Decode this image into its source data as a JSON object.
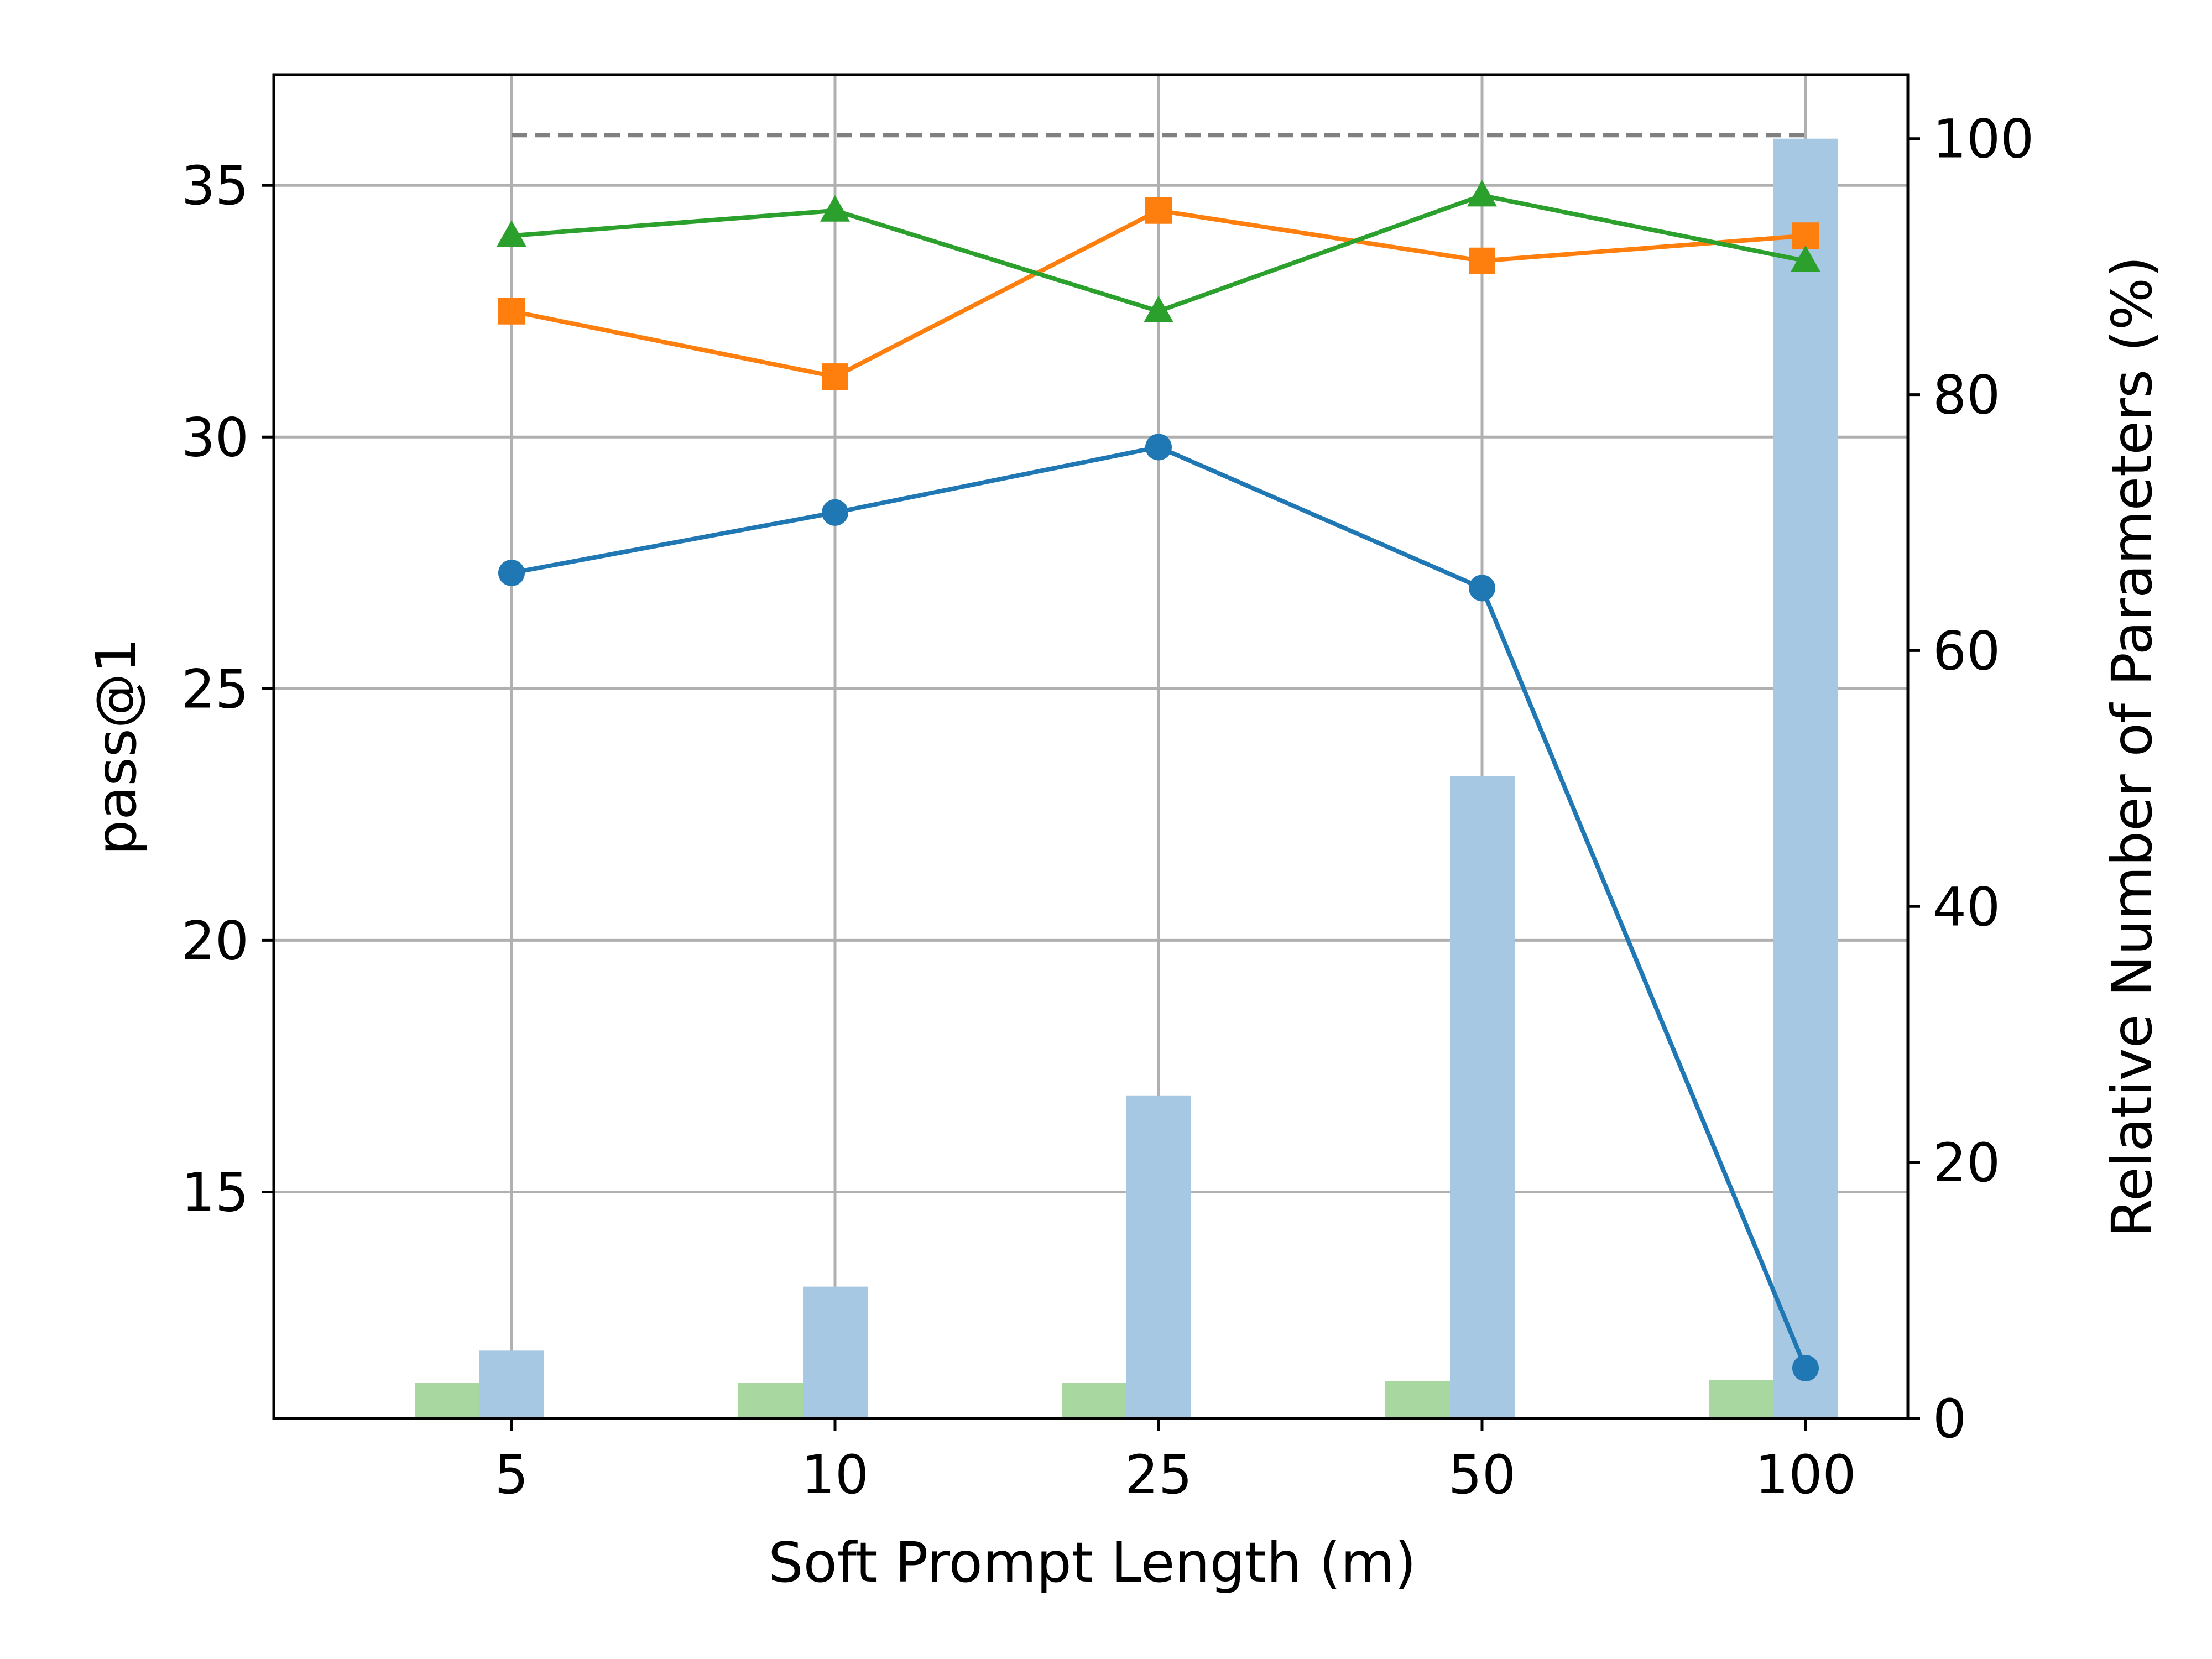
{
  "chart_data": {
    "type": "line",
    "title": "",
    "xlabel": "Soft Prompt Length (m)",
    "ylabel": "pass@1",
    "y2label": "Relative Number of Parameters (%)",
    "categories": [
      "5",
      "10",
      "25",
      "50",
      "100"
    ],
    "ylim": [
      10.5,
      37.2
    ],
    "y2lim": [
      0,
      105
    ],
    "yticks": [
      15,
      20,
      25,
      30,
      35
    ],
    "y2ticks": [
      0,
      20,
      40,
      60,
      80,
      100
    ],
    "grid": true,
    "legend": "none",
    "reference_line": {
      "value": 36.0,
      "axis": "left",
      "color": "#808080",
      "style": "dashed"
    },
    "series": [
      {
        "color": "#1f77b4",
        "marker": "circle",
        "values": [
          27.3,
          28.5,
          29.8,
          27.0,
          11.5
        ]
      },
      {
        "color": "#ff7f0e",
        "marker": "square",
        "values": [
          32.5,
          31.2,
          34.5,
          33.5,
          34.0
        ]
      },
      {
        "color": "#2ca02c",
        "marker": "triangle",
        "values": [
          34.0,
          34.5,
          32.5,
          34.8,
          33.5
        ]
      }
    ],
    "bar_series": [
      {
        "color": "#a8d8a0",
        "axis": "right",
        "values": [
          2.8,
          2.8,
          2.8,
          2.9,
          3.0
        ]
      },
      {
        "color": "#a6c8e2",
        "axis": "right",
        "values": [
          5.3,
          10.3,
          25.2,
          50.2,
          100.0
        ]
      }
    ]
  }
}
